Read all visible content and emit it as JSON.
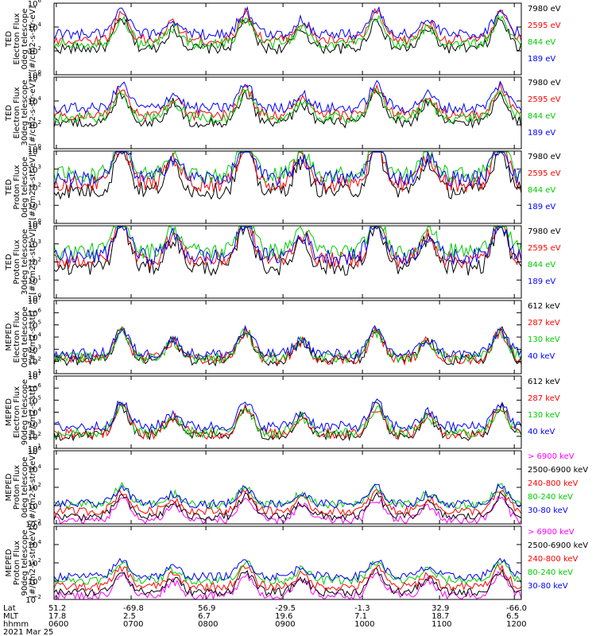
{
  "chart_data": [
    {
      "type": "line",
      "ylabel": [
        "TED",
        "Electron Flux",
        "0deg telescope",
        "[#/cm2-s-str-eV]"
      ],
      "ylim": [
        1,
        1000000
      ],
      "log": true,
      "ytick_exps": [
        "0",
        "2",
        "4",
        "6"
      ],
      "series": [
        {
          "name": "7980 eV",
          "color": "#000000",
          "level": 2.2
        },
        {
          "name": "2595 eV",
          "color": "#ff0000",
          "level": 2.9
        },
        {
          "name": "844 eV",
          "color": "#00cc00",
          "level": 2.6
        },
        {
          "name": "189 eV",
          "color": "#0000ff",
          "level": 3.4
        }
      ]
    },
    {
      "type": "line",
      "ylabel": [
        "TED",
        "Electron Flux",
        "30deg telescope",
        "[#/cm2-s-str-eV]"
      ],
      "ylim": [
        1,
        1000000
      ],
      "log": true,
      "ytick_exps": [
        "0",
        "2",
        "4",
        "6"
      ],
      "series": [
        {
          "name": "7980 eV",
          "color": "#000000",
          "level": 2.2
        },
        {
          "name": "2595 eV",
          "color": "#ff0000",
          "level": 2.8
        },
        {
          "name": "844 eV",
          "color": "#00cc00",
          "level": 2.6
        },
        {
          "name": "189 eV",
          "color": "#0000ff",
          "level": 3.4
        }
      ]
    },
    {
      "type": "line",
      "ylabel": [
        "TED",
        "Proton Flux",
        "0deg telescope",
        "[#/cm2-s-str-eV]"
      ],
      "ylim": [
        1,
        10000
      ],
      "log": true,
      "ytick_exps": [
        "0",
        "1",
        "2",
        "3",
        "4"
      ],
      "series": [
        {
          "name": "7980 eV",
          "color": "#000000",
          "level": 1.8
        },
        {
          "name": "2595 eV",
          "color": "#ff0000",
          "level": 2.2
        },
        {
          "name": "844 eV",
          "color": "#00cc00",
          "level": 2.7
        },
        {
          "name": "189 eV",
          "color": "#0000ff",
          "level": 2.5
        }
      ]
    },
    {
      "type": "line",
      "ylabel": [
        "TED",
        "Proton Flux",
        "30deg telescope",
        "[#/cm2-s-str-eV]"
      ],
      "ylim": [
        1,
        10000
      ],
      "log": true,
      "ytick_exps": [
        "0",
        "1",
        "2",
        "3",
        "4"
      ],
      "series": [
        {
          "name": "7980 eV",
          "color": "#000000",
          "level": 1.7
        },
        {
          "name": "2595 eV",
          "color": "#ff0000",
          "level": 2.1
        },
        {
          "name": "844 eV",
          "color": "#00cc00",
          "level": 2.6
        },
        {
          "name": "189 eV",
          "color": "#0000ff",
          "level": 2.3
        }
      ]
    },
    {
      "type": "line",
      "ylabel": [
        "MEPED",
        "Electron Flux",
        "0deg telescope",
        "[#/cm2-s-str]"
      ],
      "ylim": [
        10,
        10000000
      ],
      "log": true,
      "ytick_exps": [
        "1",
        "2",
        "3",
        "4",
        "5",
        "6",
        "7"
      ],
      "series": [
        {
          "name": "612 keV",
          "color": "#000000",
          "level": 2.1
        },
        {
          "name": "287 keV",
          "color": "#ff0000",
          "level": 2.2
        },
        {
          "name": "130 keV",
          "color": "#00cc00",
          "level": 2.3
        },
        {
          "name": "40 keV",
          "color": "#0000ff",
          "level": 2.6
        }
      ]
    },
    {
      "type": "line",
      "ylabel": [
        "MEPED",
        "Electron Flux",
        "90deg telescope",
        "[#/cm2-s-str]"
      ],
      "ylim": [
        10,
        10000000
      ],
      "log": true,
      "ytick_exps": [
        "1",
        "2",
        "3",
        "4",
        "5",
        "6",
        "7"
      ],
      "series": [
        {
          "name": "612 keV",
          "color": "#000000",
          "level": 2.1
        },
        {
          "name": "287 keV",
          "color": "#ff0000",
          "level": 2.2
        },
        {
          "name": "130 keV",
          "color": "#00cc00",
          "level": 2.3
        },
        {
          "name": "40 keV",
          "color": "#0000ff",
          "level": 2.8
        }
      ]
    },
    {
      "type": "line",
      "ylabel": [
        "MEPED",
        "Proton Flux",
        "0deg telescope",
        "[#/cm2-s-str-keV]"
      ],
      "ylim": [
        0.01,
        1000000
      ],
      "log": true,
      "ytick_exps": [
        "-2",
        "0",
        "2",
        "4",
        "6"
      ],
      "series": [
        {
          "name": "> 6900 keV",
          "color": "#ff00ff",
          "level": -1.6
        },
        {
          "name": "2500-6900 keV",
          "color": "#000000",
          "level": -1.2
        },
        {
          "name": "240-800 keV",
          "color": "#ff0000",
          "level": -0.6
        },
        {
          "name": "80-240 keV",
          "color": "#00cc00",
          "level": 0.1
        },
        {
          "name": "30-80 keV",
          "color": "#0000ff",
          "level": 0.2
        }
      ]
    },
    {
      "type": "line",
      "ylabel": [
        "MEPED",
        "Proton Flux",
        "90deg telescope",
        "[#/cm2-s-str-keV]"
      ],
      "ylim": [
        0.01,
        1000000
      ],
      "log": true,
      "ytick_exps": [
        "-2",
        "0",
        "2",
        "4",
        "6"
      ],
      "series": [
        {
          "name": "> 6900 keV",
          "color": "#ff00ff",
          "level": -1.6
        },
        {
          "name": "2500-6900 keV",
          "color": "#000000",
          "level": -1.2
        },
        {
          "name": "240-800 keV",
          "color": "#ff0000",
          "level": -0.6
        },
        {
          "name": "80-240 keV",
          "color": "#00cc00",
          "level": 0.1
        },
        {
          "name": "30-80 keV",
          "color": "#0000ff",
          "level": 0.5
        }
      ]
    }
  ],
  "x_axis": {
    "rows": [
      {
        "label": "Lat",
        "values": [
          "51.2",
          "-69.8",
          "56.9",
          "-29.5",
          "-1.3",
          "32.9",
          "-66.0"
        ]
      },
      {
        "label": "MLT",
        "values": [
          "17.8",
          "2.5",
          "6.7",
          "19.6",
          "7.1",
          "18.7",
          "6.5"
        ]
      },
      {
        "label": "hhmm",
        "values": [
          "0600",
          "0700",
          "0800",
          "0900",
          "1000",
          "1100",
          "1200"
        ]
      }
    ],
    "date": "2021 Mar 25",
    "time_range_hours": [
      6,
      12
    ]
  }
}
